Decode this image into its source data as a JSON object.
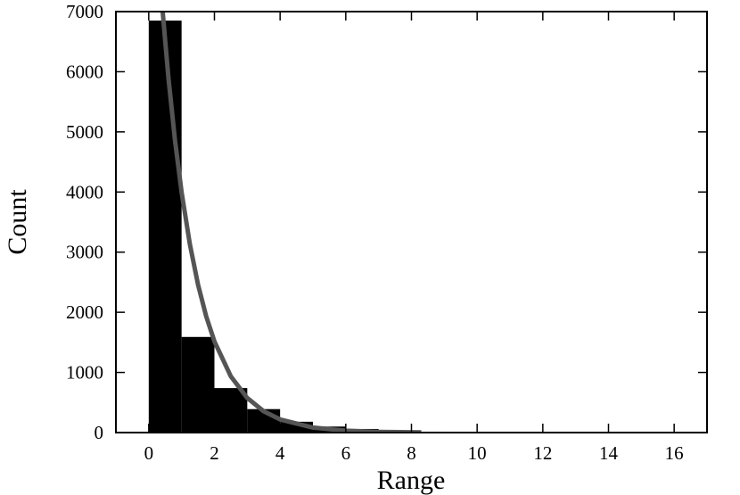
{
  "chart_data": {
    "type": "histogram",
    "x_label": "Range",
    "y_label": "Count",
    "bins": [
      0,
      1,
      2,
      3,
      4,
      5,
      6,
      7,
      8,
      9,
      10,
      11,
      12,
      13,
      14,
      15,
      16
    ],
    "counts": [
      6850,
      1590,
      740,
      390,
      180,
      100,
      60,
      30,
      15,
      8,
      5,
      3,
      2,
      1,
      1,
      1
    ],
    "color": "#000000",
    "fit": {
      "x": [
        0.4,
        0.6,
        0.8,
        1,
        1.25,
        1.5,
        1.75,
        2,
        2.5,
        3,
        3.5,
        4,
        5,
        6,
        7,
        8.3
      ],
      "y": [
        7150,
        5897,
        4856,
        3999,
        3138,
        2462,
        1932,
        1516,
        934,
        575,
        354,
        218,
        83,
        31,
        12,
        3
      ],
      "color": "#555555"
    },
    "xlim": [
      -1,
      17
    ],
    "ylim": [
      0,
      7000
    ],
    "xticks": [
      0,
      2,
      4,
      6,
      8,
      10,
      12,
      14,
      16
    ],
    "yticks": [
      0,
      1000,
      2000,
      3000,
      4000,
      5000,
      6000,
      7000
    ]
  }
}
